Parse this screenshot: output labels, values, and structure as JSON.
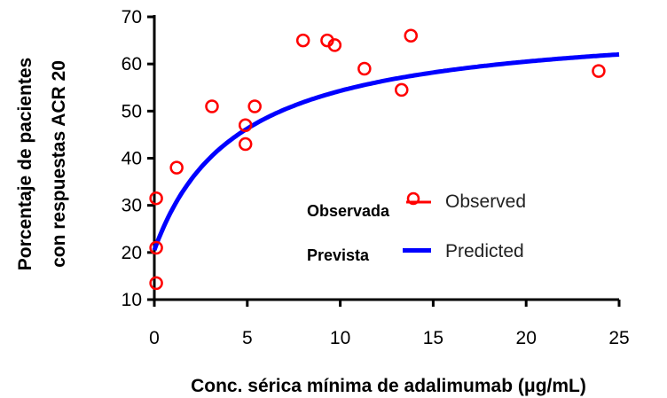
{
  "chart_data": {
    "type": "scatter",
    "xlabel": "Conc. sérica mínima de adalimumab (μg/mL)",
    "ylabel_lines": [
      "Porcentaje de pacientes",
      "con respuestas ACR 20"
    ],
    "xlim": [
      0,
      25
    ],
    "ylim": [
      10,
      70
    ],
    "xticks": [
      "0",
      "5",
      "10",
      "15",
      "20",
      "25"
    ],
    "yticks": [
      "10",
      "20",
      "30",
      "40",
      "50",
      "60",
      "70"
    ],
    "grid": false,
    "legend_position": "center-right",
    "legend": [
      {
        "label_es": "Observada",
        "label_en": "Observed",
        "marker": "circle",
        "color": "#ff0000"
      },
      {
        "label_es": "Prevista",
        "label_en": "Predicted",
        "marker": "line",
        "color": "#0000ff"
      }
    ],
    "series": [
      {
        "name": "Observed",
        "color": "#ff0000",
        "points": [
          {
            "x": 0.1,
            "y": 13.5
          },
          {
            "x": 0.1,
            "y": 21
          },
          {
            "x": 0.1,
            "y": 31.5
          },
          {
            "x": 1.2,
            "y": 38
          },
          {
            "x": 3.1,
            "y": 51
          },
          {
            "x": 4.9,
            "y": 43
          },
          {
            "x": 4.9,
            "y": 47
          },
          {
            "x": 5.4,
            "y": 51
          },
          {
            "x": 8.0,
            "y": 65
          },
          {
            "x": 9.3,
            "y": 65
          },
          {
            "x": 9.7,
            "y": 64
          },
          {
            "x": 11.3,
            "y": 59
          },
          {
            "x": 13.3,
            "y": 54.5
          },
          {
            "x": 13.8,
            "y": 66
          },
          {
            "x": 23.9,
            "y": 58.5
          }
        ]
      },
      {
        "name": "Predicted",
        "color": "#0000ff",
        "curve": {
          "e0": 20.5,
          "emax": 49,
          "ec50": 4.5,
          "x_range": [
            0,
            25
          ]
        }
      }
    ]
  }
}
